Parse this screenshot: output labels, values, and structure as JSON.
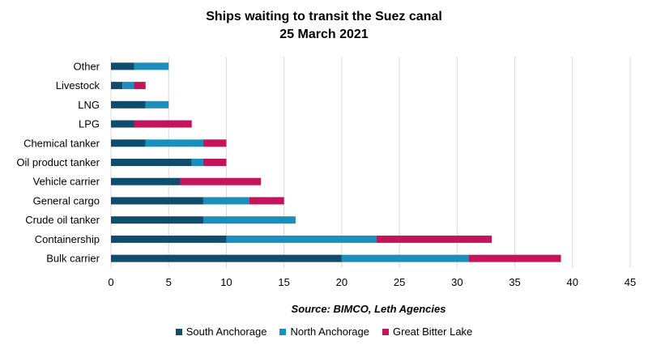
{
  "chart_data": {
    "type": "bar",
    "orientation": "horizontal",
    "stacked": true,
    "title": "Ships waiting to transit the Suez canal",
    "subtitle": "25 March 2021",
    "source": "Source: BIMCO, Leth Agencies",
    "categories": [
      "Bulk carrier",
      "Containership",
      "Crude oil tanker",
      "General cargo",
      "Vehicle carrier",
      "Oil product tanker",
      "Chemical tanker",
      "LPG",
      "LNG",
      "Livestock",
      "Other"
    ],
    "series": [
      {
        "name": "South Anchorage",
        "color": "#0e4d6e",
        "values": [
          20,
          10,
          8,
          8,
          6,
          7,
          3,
          2,
          3,
          1,
          2
        ]
      },
      {
        "name": "North Anchorage",
        "color": "#1a8fbd",
        "values": [
          11,
          13,
          8,
          4,
          0,
          1,
          5,
          0,
          2,
          1,
          3
        ]
      },
      {
        "name": "Great Bitter Lake",
        "color": "#c4145a",
        "values": [
          8,
          10,
          0,
          3,
          7,
          2,
          2,
          5,
          0,
          1,
          0
        ]
      }
    ],
    "xlim": [
      0,
      45
    ],
    "xticks": [
      0,
      5,
      10,
      15,
      20,
      25,
      30,
      35,
      40,
      45
    ],
    "grid": true,
    "legend_position": "bottom"
  }
}
